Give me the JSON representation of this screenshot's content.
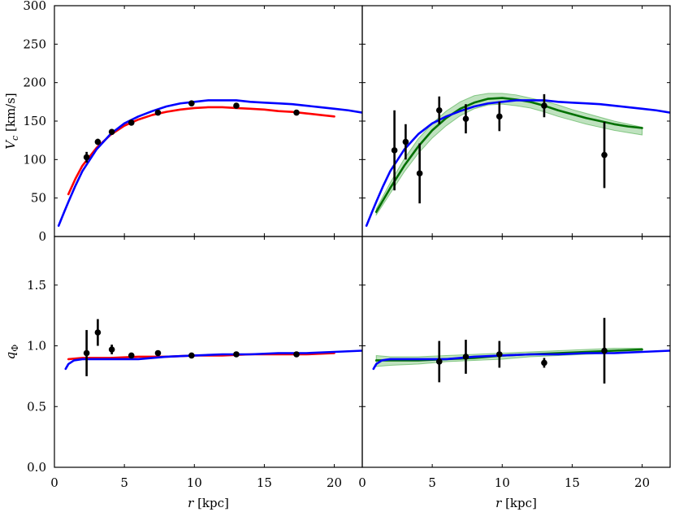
{
  "chart_data": {
    "type": "line",
    "layout": "2x2 panel grid, shared x axes per column, shared y axes per row",
    "x_ticks": [
      0,
      5,
      10,
      15,
      20
    ],
    "xlim": [
      0,
      22
    ],
    "xlabel": "r [kpc]",
    "rows": [
      {
        "ylabel": "V_c [km/s]",
        "ylim": [
          0,
          300
        ],
        "y_ticks": [
          0,
          50,
          100,
          150,
          200,
          250,
          300
        ],
        "y_tick_labels": [
          "0",
          "50",
          "100",
          "150",
          "200",
          "250",
          "300"
        ]
      },
      {
        "ylabel": "q_Φ",
        "ylim": [
          0,
          1.9
        ],
        "y_ticks": [
          0,
          0.5,
          1.0,
          1.5
        ],
        "y_tick_labels": [
          "0.0",
          "0.5",
          "1.0",
          "1.5"
        ]
      }
    ],
    "panels": [
      {
        "row": 0,
        "col": 0,
        "series": [
          {
            "kind": "line",
            "color": "#ff0000",
            "x": [
              1.0,
              1.5,
              2.0,
              3.0,
              4.0,
              5.0,
              6.0,
              7.0,
              8.0,
              9.0,
              10.0,
              11.0,
              12.0,
              13.0,
              14.0,
              15.0,
              16.0,
              17.0,
              18.0,
              19.0,
              20.0
            ],
            "y": [
              55,
              75,
              92,
              115,
              132,
              144,
              152,
              158,
              162,
              165,
              167,
              168,
              168,
              167,
              166,
              165,
              163,
              162,
              160,
              158,
              156
            ]
          },
          {
            "kind": "line",
            "color": "#0000ff",
            "x": [
              0.3,
              0.7,
              1.0,
              1.5,
              2.0,
              3.0,
              4.0,
              5.0,
              6.0,
              7.0,
              8.0,
              9.0,
              10.0,
              11.0,
              12.0,
              13.0,
              14.0,
              15.0,
              16.0,
              17.0,
              18.0,
              19.0,
              20.0,
              21.0,
              22.0
            ],
            "y": [
              14,
              32,
              45,
              66,
              85,
              113,
              133,
              147,
              156,
              163,
              169,
              173,
              175,
              177,
              177,
              177,
              175,
              174,
              173,
              172,
              170,
              168,
              166,
              164,
              161
            ]
          },
          {
            "kind": "errorbar",
            "color": "#000000",
            "x": [
              2.3,
              3.1,
              4.1,
              5.5,
              7.4,
              9.8,
              13.0,
              17.3
            ],
            "y": [
              103,
              123,
              136,
              148,
              161,
              173,
              170,
              161
            ],
            "err": [
              7,
              4,
              3,
              2,
              2,
              2,
              2,
              2
            ]
          }
        ]
      },
      {
        "row": 0,
        "col": 1,
        "series": [
          {
            "kind": "band",
            "color": "#2ca02c",
            "x": [
              1.0,
              2.0,
              3.0,
              4.0,
              5.0,
              6.0,
              7.0,
              8.0,
              9.0,
              10.0,
              11.0,
              12.0,
              13.0,
              14.0,
              15.0,
              16.0,
              17.0,
              18.0,
              19.0,
              20.0
            ],
            "upper": [
              36,
              70,
              101,
              127,
              147,
              163,
              175,
              183,
              186,
              186,
              184,
              180,
              176,
              171,
              165,
              160,
              155,
              150,
              146,
              142
            ],
            "lower": [
              28,
              56,
              84,
              108,
              128,
              144,
              157,
              166,
              171,
              172,
              170,
              167,
              162,
              156,
              151,
              146,
              142,
              138,
              135,
              132
            ]
          },
          {
            "kind": "line",
            "color": "#007000",
            "x": [
              1.0,
              2.0,
              3.0,
              4.0,
              5.0,
              6.0,
              7.0,
              8.0,
              9.0,
              10.0,
              11.0,
              12.0,
              13.0,
              14.0,
              15.0,
              16.0,
              17.0,
              18.0,
              19.0,
              20.0
            ],
            "y": [
              32,
              63,
              92,
              117,
              138,
              154,
              166,
              174,
              179,
              180,
              178,
              175,
              170,
              164,
              159,
              154,
              150,
              146,
              143,
              141
            ]
          },
          {
            "kind": "line",
            "color": "#0000ff",
            "x": [
              0.3,
              0.7,
              1.0,
              1.5,
              2.0,
              3.0,
              4.0,
              5.0,
              6.0,
              7.0,
              8.0,
              9.0,
              10.0,
              11.0,
              12.0,
              13.0,
              14.0,
              15.0,
              16.0,
              17.0,
              18.0,
              19.0,
              20.0,
              21.0,
              22.0
            ],
            "y": [
              14,
              32,
              45,
              66,
              85,
              113,
              133,
              147,
              156,
              163,
              169,
              173,
              175,
              177,
              177,
              177,
              175,
              174,
              173,
              172,
              170,
              168,
              166,
              164,
              161
            ]
          },
          {
            "kind": "errorbar",
            "color": "#000000",
            "x": [
              2.3,
              3.1,
              4.1,
              5.5,
              7.4,
              9.8,
              13.0,
              17.3
            ],
            "y": [
              112,
              123,
              82,
              164,
              153,
              156,
              170,
              106
            ],
            "err": [
              52,
              23,
              39,
              18,
              19,
              19,
              15,
              43
            ]
          }
        ]
      },
      {
        "row": 1,
        "col": 0,
        "series": [
          {
            "kind": "line",
            "color": "#ff0000",
            "x": [
              1.0,
              2.0,
              4.0,
              6.0,
              8.0,
              10.0,
              12.0,
              14.0,
              16.0,
              18.0,
              20.0
            ],
            "y": [
              0.89,
              0.9,
              0.9,
              0.91,
              0.91,
              0.92,
              0.92,
              0.93,
              0.93,
              0.93,
              0.94
            ]
          },
          {
            "kind": "line",
            "color": "#0000ff",
            "x": [
              0.8,
              1.0,
              1.4,
              2.0,
              3.0,
              4.0,
              5.0,
              6.0,
              7.0,
              8.0,
              10.0,
              12.0,
              14.0,
              16.0,
              18.0,
              20.0,
              22.0
            ],
            "y": [
              0.81,
              0.85,
              0.88,
              0.89,
              0.89,
              0.89,
              0.89,
              0.89,
              0.9,
              0.91,
              0.92,
              0.93,
              0.93,
              0.94,
              0.94,
              0.95,
              0.96
            ]
          },
          {
            "kind": "errorbar",
            "color": "#000000",
            "x": [
              2.3,
              3.1,
              4.1,
              5.5,
              7.4,
              9.8,
              13.0,
              17.3
            ],
            "y": [
              0.94,
              1.11,
              0.97,
              0.92,
              0.94,
              0.92,
              0.93,
              0.93
            ],
            "err": [
              0.19,
              0.11,
              0.04,
              0.02,
              0.015,
              0.015,
              0.015,
              0.015
            ]
          }
        ]
      },
      {
        "row": 1,
        "col": 1,
        "series": [
          {
            "kind": "band",
            "color": "#2ca02c",
            "x": [
              1.0,
              2.0,
              4.0,
              6.0,
              8.0,
              10.0,
              12.0,
              14.0,
              16.0,
              18.0,
              20.0
            ],
            "upper": [
              0.92,
              0.91,
              0.91,
              0.92,
              0.93,
              0.94,
              0.95,
              0.96,
              0.97,
              0.98,
              0.98
            ],
            "lower": [
              0.83,
              0.84,
              0.85,
              0.87,
              0.88,
              0.89,
              0.91,
              0.92,
              0.93,
              0.94,
              0.95
            ]
          },
          {
            "kind": "line",
            "color": "#007000",
            "x": [
              1.0,
              2.0,
              4.0,
              6.0,
              8.0,
              10.0,
              12.0,
              14.0,
              16.0,
              18.0,
              20.0
            ],
            "y": [
              0.88,
              0.88,
              0.88,
              0.89,
              0.9,
              0.92,
              0.93,
              0.94,
              0.95,
              0.96,
              0.97
            ]
          },
          {
            "kind": "line",
            "color": "#0000ff",
            "x": [
              0.8,
              1.0,
              1.4,
              2.0,
              3.0,
              4.0,
              5.0,
              6.0,
              7.0,
              8.0,
              10.0,
              12.0,
              14.0,
              16.0,
              18.0,
              20.0,
              22.0
            ],
            "y": [
              0.81,
              0.85,
              0.88,
              0.89,
              0.89,
              0.89,
              0.89,
              0.89,
              0.9,
              0.91,
              0.92,
              0.93,
              0.93,
              0.94,
              0.94,
              0.95,
              0.96
            ]
          },
          {
            "kind": "errorbar",
            "color": "#000000",
            "x": [
              5.5,
              7.4,
              9.8,
              13.0,
              17.3
            ],
            "y": [
              0.87,
              0.91,
              0.93,
              0.86,
              0.96
            ],
            "err": [
              0.17,
              0.14,
              0.11,
              0.04,
              0.27
            ]
          }
        ]
      }
    ]
  }
}
